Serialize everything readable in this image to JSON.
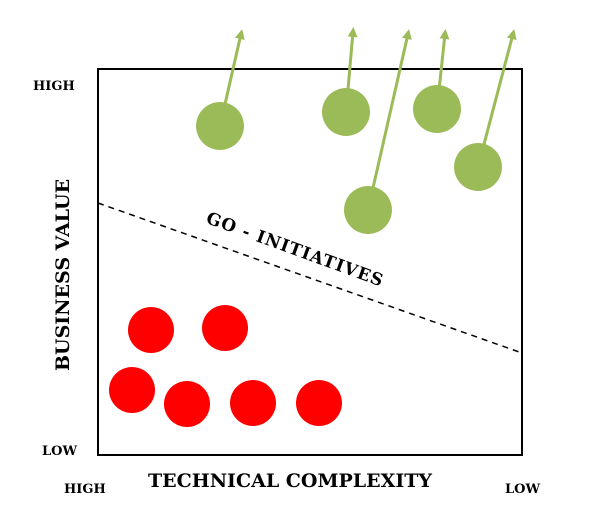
{
  "labels": {
    "y_high": "HIGH",
    "y_low": "LOW",
    "x_high": "HIGH",
    "x_low": "LOW",
    "y_axis": "BUSINESS VALUE",
    "x_axis": "TECHNICAL COMPLEXITY",
    "zone": "GO - INITIATIVES"
  },
  "colors": {
    "go_initiative": "#9bbb59",
    "other_initiative": "#ff0000",
    "frame": "#000000"
  }
}
